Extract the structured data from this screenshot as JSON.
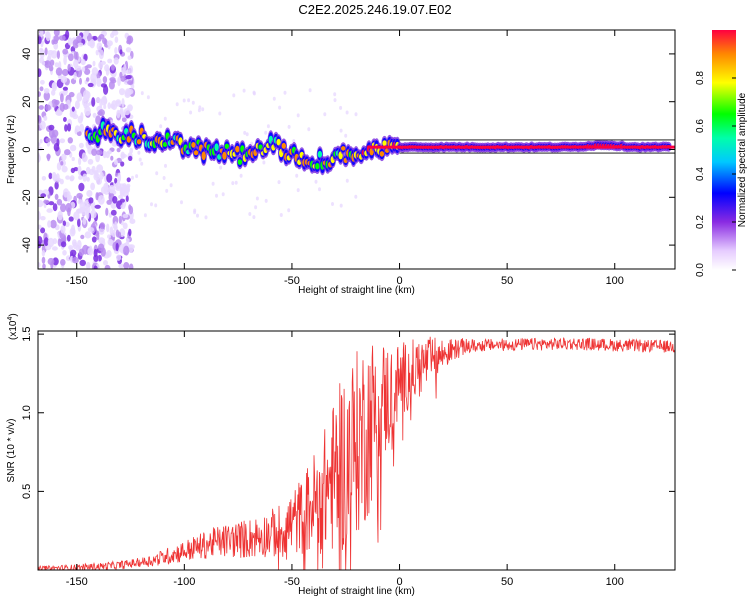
{
  "title": "C2E2.2025.246.19.07.E02",
  "colors": {
    "snr_line": "#ee3333",
    "axis": "#000000",
    "background": "#ffffff"
  },
  "chart_data": [
    {
      "type": "heatmap",
      "name": "spectrogram",
      "xlabel": "Height of straight line (km)",
      "ylabel": "Frequency (Hz)",
      "xlim": [
        -168,
        128
      ],
      "ylim": [
        -50,
        50
      ],
      "xticks": [
        -150,
        -100,
        -50,
        0,
        50,
        100
      ],
      "yticks": [
        -40,
        -20,
        0,
        20,
        40
      ],
      "colorbar": {
        "label": "Normalized spectral amplitude",
        "range": [
          0,
          1
        ],
        "ticks": [
          0.0,
          0.2,
          0.4,
          0.6,
          0.8
        ],
        "colormap": "rainbow (violet to red)"
      },
      "ridge": {
        "x": [
          -145,
          -130,
          -115,
          -100,
          -85,
          -70,
          -60,
          -50,
          -40,
          -35,
          -30,
          -20,
          -10,
          0,
          20,
          50,
          80,
          95,
          110,
          128
        ],
        "frequency": [
          8,
          6,
          4,
          2,
          -1,
          -3,
          2,
          -2,
          -4,
          -5,
          -3,
          -1,
          0,
          1,
          1,
          1,
          1,
          2,
          1,
          1
        ]
      },
      "noise_region_x": [
        -168,
        -130
      ]
    },
    {
      "type": "line",
      "name": "snr",
      "xlabel": "Height of straight line (km)",
      "ylabel": "SNR (10 * v/v)",
      "multiplier_label": "(x10",
      "multiplier_exponent": "4",
      "multiplier_close": ")",
      "xlim": [
        -168,
        128
      ],
      "ylim": [
        0,
        15200
      ],
      "xticks": [
        -150,
        -100,
        -50,
        0,
        50,
        100
      ],
      "yticks": [
        5000,
        10000,
        15000
      ],
      "ytick_labels": [
        "0.5",
        "1.0",
        "1.5"
      ],
      "envelope": {
        "x": [
          -168,
          -150,
          -130,
          -115,
          -100,
          -85,
          -70,
          -55,
          -45,
          -35,
          -25,
          -15,
          -10,
          -5,
          0,
          10,
          20,
          25,
          30,
          40,
          60,
          80,
          100,
          128
        ],
        "y": [
          100,
          150,
          300,
          600,
          1200,
          1800,
          2000,
          2500,
          3500,
          5000,
          7000,
          9000,
          10500,
          11000,
          12000,
          13000,
          13700,
          14000,
          14200,
          14300,
          14350,
          14400,
          14300,
          14200
        ]
      },
      "noise": {
        "x": [
          -168,
          -120,
          -100,
          -60,
          -45,
          -35,
          -25,
          -15,
          -10,
          0,
          15,
          25,
          35,
          128
        ],
        "amplitude": [
          150,
          300,
          700,
          1500,
          2500,
          4000,
          6000,
          6000,
          4500,
          2500,
          1500,
          700,
          400,
          400
        ]
      }
    }
  ]
}
